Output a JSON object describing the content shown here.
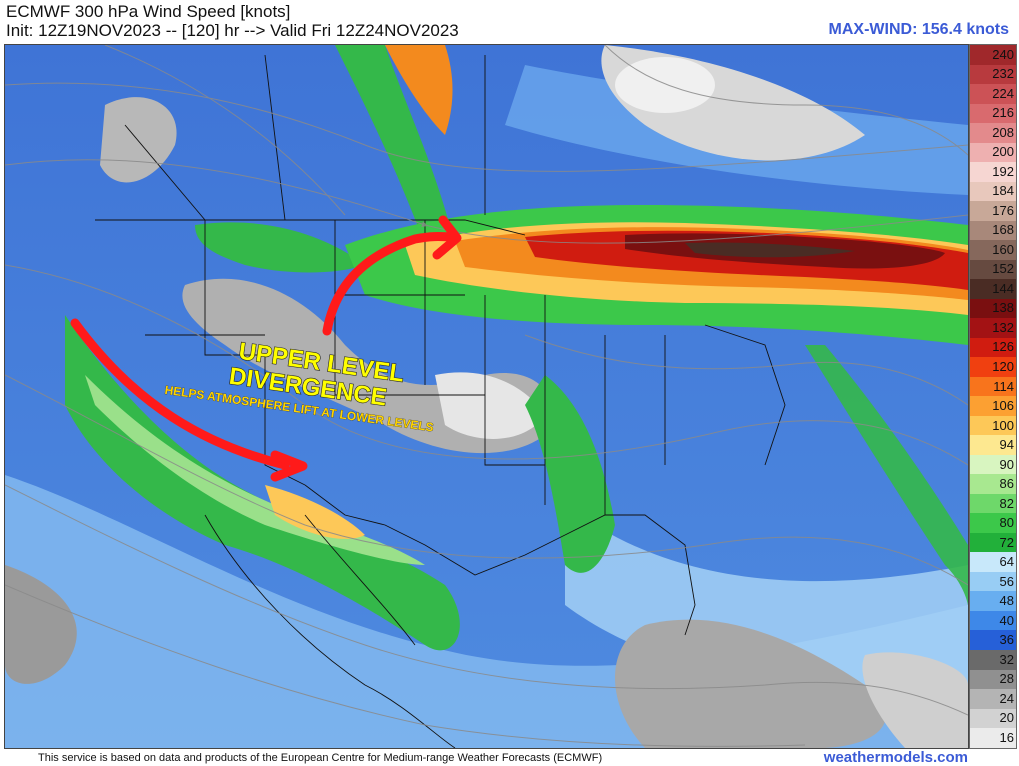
{
  "header": {
    "title": "ECMWF 300 hPa Wind Speed [knots]",
    "init": "Init: 12Z19NOV2023 -- [120] hr --> Valid Fri 12Z24NOV2023",
    "max_wind": "MAX-WIND: 156.4 knots"
  },
  "annotation": {
    "line1": "UPPER LEVEL",
    "line2": "DIVERGENCE",
    "subtext": "HELPS ATMOSPHERE LIFT AT LOWER LEVELS",
    "arrow_color": "#ff1a1a"
  },
  "legend": {
    "unit": "knots",
    "stops": [
      {
        "label": "240",
        "color": "#a0282b"
      },
      {
        "label": "232",
        "color": "#b83a3e"
      },
      {
        "label": "224",
        "color": "#cc5256"
      },
      {
        "label": "216",
        "color": "#d96a6e"
      },
      {
        "label": "208",
        "color": "#e38a8c"
      },
      {
        "label": "200",
        "color": "#eeb0b0"
      },
      {
        "label": "192",
        "color": "#f6d6d2"
      },
      {
        "label": "184",
        "color": "#e8c8bc"
      },
      {
        "label": "176",
        "color": "#c8a898"
      },
      {
        "label": "168",
        "color": "#a8887a"
      },
      {
        "label": "160",
        "color": "#86685c"
      },
      {
        "label": "152",
        "color": "#664a40"
      },
      {
        "label": "144",
        "color": "#4a2c24"
      },
      {
        "label": "138",
        "color": "#7a0f10"
      },
      {
        "label": "132",
        "color": "#a31214"
      },
      {
        "label": "126",
        "color": "#d01c10"
      },
      {
        "label": "120",
        "color": "#f04010"
      },
      {
        "label": "114",
        "color": "#f8741c"
      },
      {
        "label": "106",
        "color": "#fca032"
      },
      {
        "label": "100",
        "color": "#fdc858"
      },
      {
        "label": "94",
        "color": "#fde890"
      },
      {
        "label": "90",
        "color": "#d8f5c0"
      },
      {
        "label": "86",
        "color": "#a8e890"
      },
      {
        "label": "82",
        "color": "#6ed86a"
      },
      {
        "label": "80",
        "color": "#3cc84a"
      },
      {
        "label": "72",
        "color": "#22b03a"
      },
      {
        "label": "64",
        "color": "#c8e8fa"
      },
      {
        "label": "56",
        "color": "#98cdf4"
      },
      {
        "label": "48",
        "color": "#68aef0"
      },
      {
        "label": "40",
        "color": "#3e88e8"
      },
      {
        "label": "36",
        "color": "#2660d8"
      },
      {
        "label": "32",
        "color": "#6a6a6a"
      },
      {
        "label": "28",
        "color": "#909090"
      },
      {
        "label": "24",
        "color": "#b4b4b4"
      },
      {
        "label": "20",
        "color": "#d2d2d2"
      },
      {
        "label": "16",
        "color": "#ebebeb"
      }
    ]
  },
  "footer": {
    "credit": "This service is based on data and products of the European Centre for Medium-range Weather Forecasts (ECMWF)",
    "site": "weathermodels.com"
  },
  "map_colors": {
    "background_blue": "#4a7ad8",
    "jet_core": "#7a1010",
    "jet_orange": "#f38a1e",
    "jet_green": "#3cc84a",
    "low_speed_gray": "#c8c8c8",
    "light_blue": "#9fd0f4"
  }
}
